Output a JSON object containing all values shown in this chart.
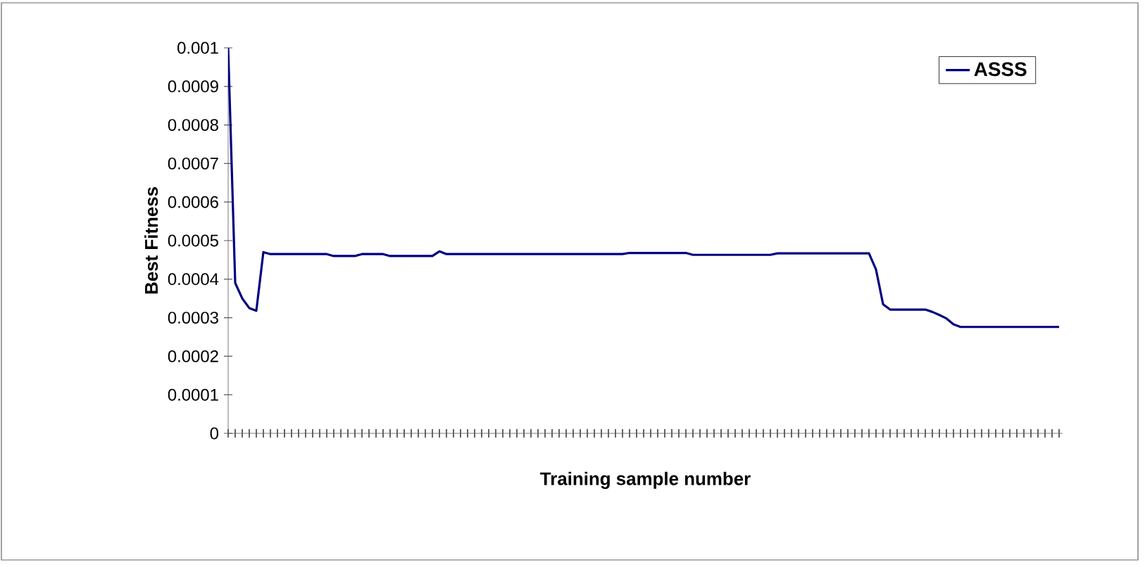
{
  "chart_data": {
    "type": "line",
    "xlabel": "Training sample number",
    "ylabel": "Best Fitness",
    "categories": [
      null,
      null,
      null,
      null,
      null,
      null,
      null,
      null,
      null,
      null,
      null,
      null,
      null,
      null,
      null,
      null,
      null,
      null,
      null,
      null,
      null,
      null,
      null,
      null,
      null,
      null,
      null,
      null,
      null,
      null,
      null,
      null,
      null,
      null,
      null,
      null,
      null,
      null,
      null,
      null,
      null,
      null,
      null,
      null,
      null,
      null,
      null,
      null,
      null,
      null,
      null,
      null,
      null,
      null,
      null,
      null,
      null,
      null,
      null,
      null,
      null,
      null,
      null,
      null,
      null,
      null,
      null,
      null,
      null,
      null,
      null,
      null,
      null,
      null,
      null,
      null,
      null,
      null,
      null,
      null,
      null,
      null,
      null,
      null,
      null,
      null,
      null,
      null,
      null,
      null,
      null,
      null,
      null,
      null,
      null,
      null,
      null,
      null,
      null,
      null,
      null,
      null,
      null,
      null,
      null,
      null,
      null,
      null,
      null,
      null,
      null,
      null,
      null,
      null,
      null,
      null,
      null,
      null,
      null
    ],
    "series": [
      {
        "name": "ASSS",
        "color": "#000080",
        "values": [
          0.001,
          0.00039,
          0.00035,
          0.000325,
          0.000318,
          0.00047,
          0.000465,
          0.000465,
          0.000465,
          0.000465,
          0.000465,
          0.000465,
          0.000465,
          0.000465,
          0.000465,
          0.00046,
          0.00046,
          0.00046,
          0.00046,
          0.000465,
          0.000465,
          0.000465,
          0.000465,
          0.00046,
          0.00046,
          0.00046,
          0.00046,
          0.00046,
          0.00046,
          0.00046,
          0.000472,
          0.000465,
          0.000465,
          0.000465,
          0.000465,
          0.000465,
          0.000465,
          0.000465,
          0.000465,
          0.000465,
          0.000465,
          0.000465,
          0.000465,
          0.000465,
          0.000465,
          0.000465,
          0.000465,
          0.000465,
          0.000465,
          0.000465,
          0.000465,
          0.000465,
          0.000465,
          0.000465,
          0.000465,
          0.000465,
          0.000465,
          0.000468,
          0.000468,
          0.000468,
          0.000468,
          0.000468,
          0.000468,
          0.000468,
          0.000468,
          0.000468,
          0.000463,
          0.000463,
          0.000463,
          0.000463,
          0.000463,
          0.000463,
          0.000463,
          0.000463,
          0.000463,
          0.000463,
          0.000463,
          0.000463,
          0.000467,
          0.000467,
          0.000467,
          0.000467,
          0.000467,
          0.000467,
          0.000467,
          0.000467,
          0.000467,
          0.000467,
          0.000467,
          0.000467,
          0.000467,
          0.000467,
          0.000425,
          0.000335,
          0.000321,
          0.000321,
          0.000321,
          0.000321,
          0.000321,
          0.000321,
          0.000315,
          0.000307,
          0.000298,
          0.000283,
          0.000276,
          0.000276,
          0.000276,
          0.000276,
          0.000276,
          0.000276,
          0.000276,
          0.000276,
          0.000276,
          0.000276,
          0.000276,
          0.000276,
          0.000276,
          0.000276,
          0.000276
        ]
      }
    ],
    "ylim": [
      0,
      0.001
    ],
    "yticks": [
      0,
      0.0001,
      0.0002,
      0.0003,
      0.0004,
      0.0005,
      0.0006,
      0.0007,
      0.0008,
      0.0009,
      0.001
    ],
    "legend": "top right",
    "grid": false,
    "marker": "none",
    "line_style": "solid"
  }
}
